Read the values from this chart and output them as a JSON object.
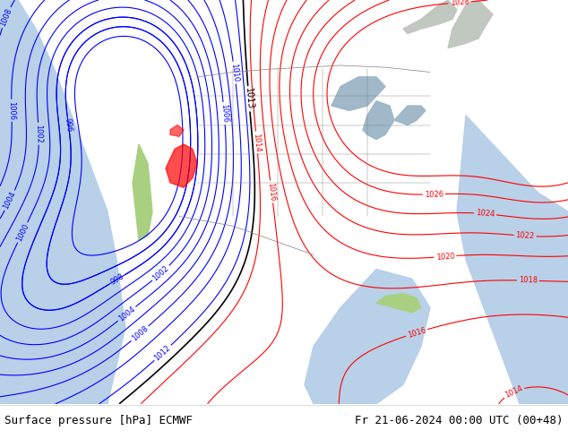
{
  "title_left": "Surface pressure [hPa] ECMWF",
  "title_right": "Fr 21-06-2024 00:00 UTC (00+48)",
  "bg_color": "#ffffff",
  "land_color_green": "#a8d080",
  "land_color_light": "#c8e89a",
  "ocean_color": "#d0e8f8",
  "font_color_bottom": "#000000",
  "bottom_bar_height": 0.08,
  "figsize": [
    6.34,
    4.9
  ],
  "dpi": 100
}
